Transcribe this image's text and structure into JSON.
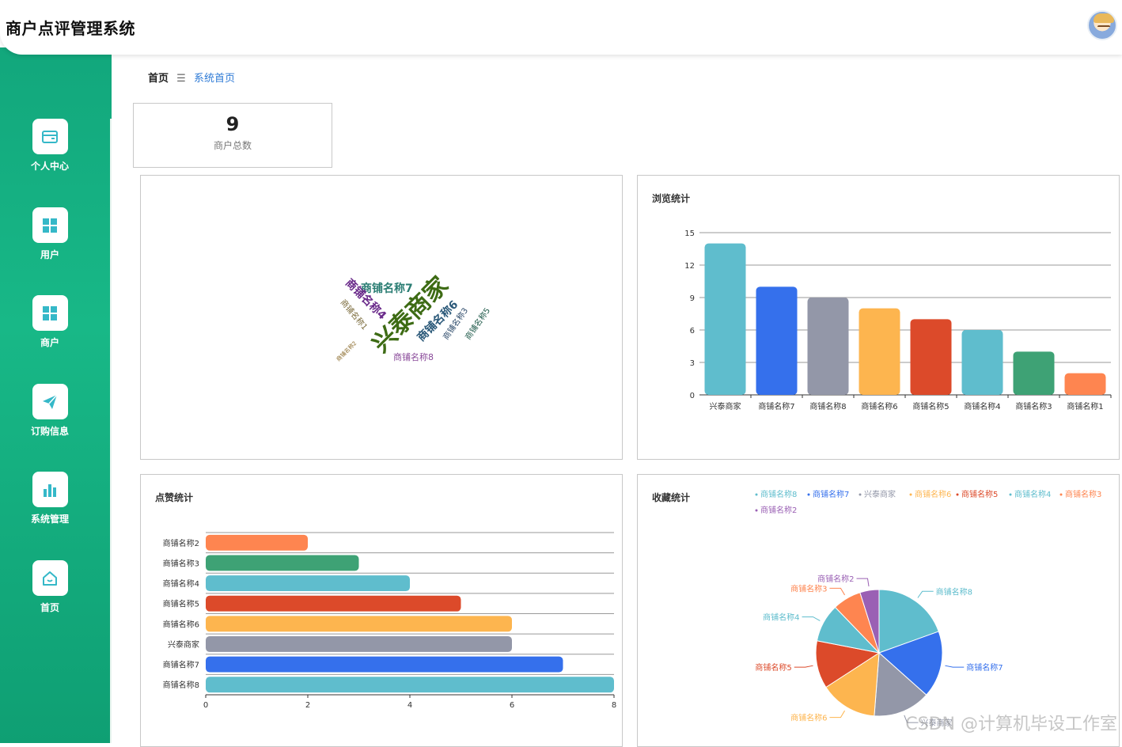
{
  "app": {
    "title": "商户点评管理系统"
  },
  "sidebar": {
    "items": [
      {
        "label": "个人中心",
        "icon": "wallet-icon"
      },
      {
        "label": "用户",
        "icon": "grid-icon"
      },
      {
        "label": "商户",
        "icon": "grid-icon"
      },
      {
        "label": "订购信息",
        "icon": "paper-plane-icon"
      },
      {
        "label": "系统管理",
        "icon": "bar-chart-icon"
      },
      {
        "label": "首页",
        "icon": "home-icon"
      }
    ]
  },
  "breadcrumb": {
    "home": "首页",
    "separator": "☰",
    "current": "系统首页"
  },
  "stat": {
    "value": "9",
    "label": "商户总数"
  },
  "wordcloud": {
    "words": [
      {
        "text": "兴泰商家",
        "color": "#3d6b14"
      },
      {
        "text": "商铺名称7",
        "color": "#2a7d73"
      },
      {
        "text": "商铺名称4",
        "color": "#6a2a8a"
      },
      {
        "text": "商铺名称6",
        "color": "#2c5a7a"
      },
      {
        "text": "商铺名称1",
        "color": "#7a6a3a"
      },
      {
        "text": "商铺名称3",
        "color": "#2c4a6a"
      },
      {
        "text": "商铺名称5",
        "color": "#1f5a4a"
      },
      {
        "text": "商铺名称8",
        "color": "#8a4a9a"
      },
      {
        "text": "商铺名称2",
        "color": "#8a6a2a"
      }
    ]
  },
  "browse_chart": {
    "title": "浏览统计"
  },
  "like_chart": {
    "title": "点赞统计"
  },
  "fav_chart": {
    "title": "收藏统计"
  },
  "chart_data": [
    {
      "type": "bar",
      "title": "浏览统计",
      "categories": [
        "兴泰商家",
        "商铺名称7",
        "商铺名称8",
        "商铺名称6",
        "商铺名称5",
        "商铺名称4",
        "商铺名称3",
        "商铺名称1"
      ],
      "values": [
        14,
        10,
        9,
        8,
        7,
        6,
        4,
        2
      ],
      "colors": [
        "#5fbdcd",
        "#3570ec",
        "#9397a8",
        "#fdb54f",
        "#dc4a2a",
        "#5fbdcd",
        "#3ea275",
        "#fe8550"
      ],
      "ylim": [
        0,
        15
      ],
      "yticks": [
        0,
        3,
        6,
        9,
        12,
        15
      ],
      "grid": true
    },
    {
      "type": "bar",
      "orientation": "horizontal",
      "title": "点赞统计",
      "categories": [
        "商铺名称2",
        "商铺名称3",
        "商铺名称4",
        "商铺名称5",
        "商铺名称6",
        "兴泰商家",
        "商铺名称7",
        "商铺名称8"
      ],
      "values": [
        2,
        3,
        4,
        5,
        6,
        6,
        7,
        8
      ],
      "colors": [
        "#fe8550",
        "#3ea275",
        "#5fbdcd",
        "#dc4a2a",
        "#fdb54f",
        "#9397a8",
        "#3570ec",
        "#5fbdcd"
      ],
      "xlim": [
        0,
        8
      ],
      "xticks": [
        0,
        2,
        4,
        6,
        8
      ],
      "grid": true
    },
    {
      "type": "pie",
      "title": "收藏统计",
      "legend": [
        "商铺名称8",
        "商铺名称7",
        "兴泰商家",
        "商铺名称6",
        "商铺名称5",
        "商铺名称4",
        "商铺名称3",
        "商铺名称2"
      ],
      "legend_position": "top-right",
      "slices": [
        {
          "name": "商铺名称8",
          "value": 8,
          "color": "#5fbdcd"
        },
        {
          "name": "商铺名称7",
          "value": 7,
          "color": "#3570ec"
        },
        {
          "name": "兴泰商家",
          "value": 6,
          "color": "#9397a8"
        },
        {
          "name": "商铺名称6",
          "value": 6,
          "color": "#fdb54f"
        },
        {
          "name": "商铺名称5",
          "value": 5,
          "color": "#dc4a2a"
        },
        {
          "name": "商铺名称4",
          "value": 4,
          "color": "#5fbdcd"
        },
        {
          "name": "商铺名称3",
          "value": 3,
          "color": "#fe8550"
        },
        {
          "name": "商铺名称2",
          "value": 2,
          "color": "#9a60b4"
        }
      ]
    }
  ],
  "watermark": "CSDN @计算机毕设工作室"
}
